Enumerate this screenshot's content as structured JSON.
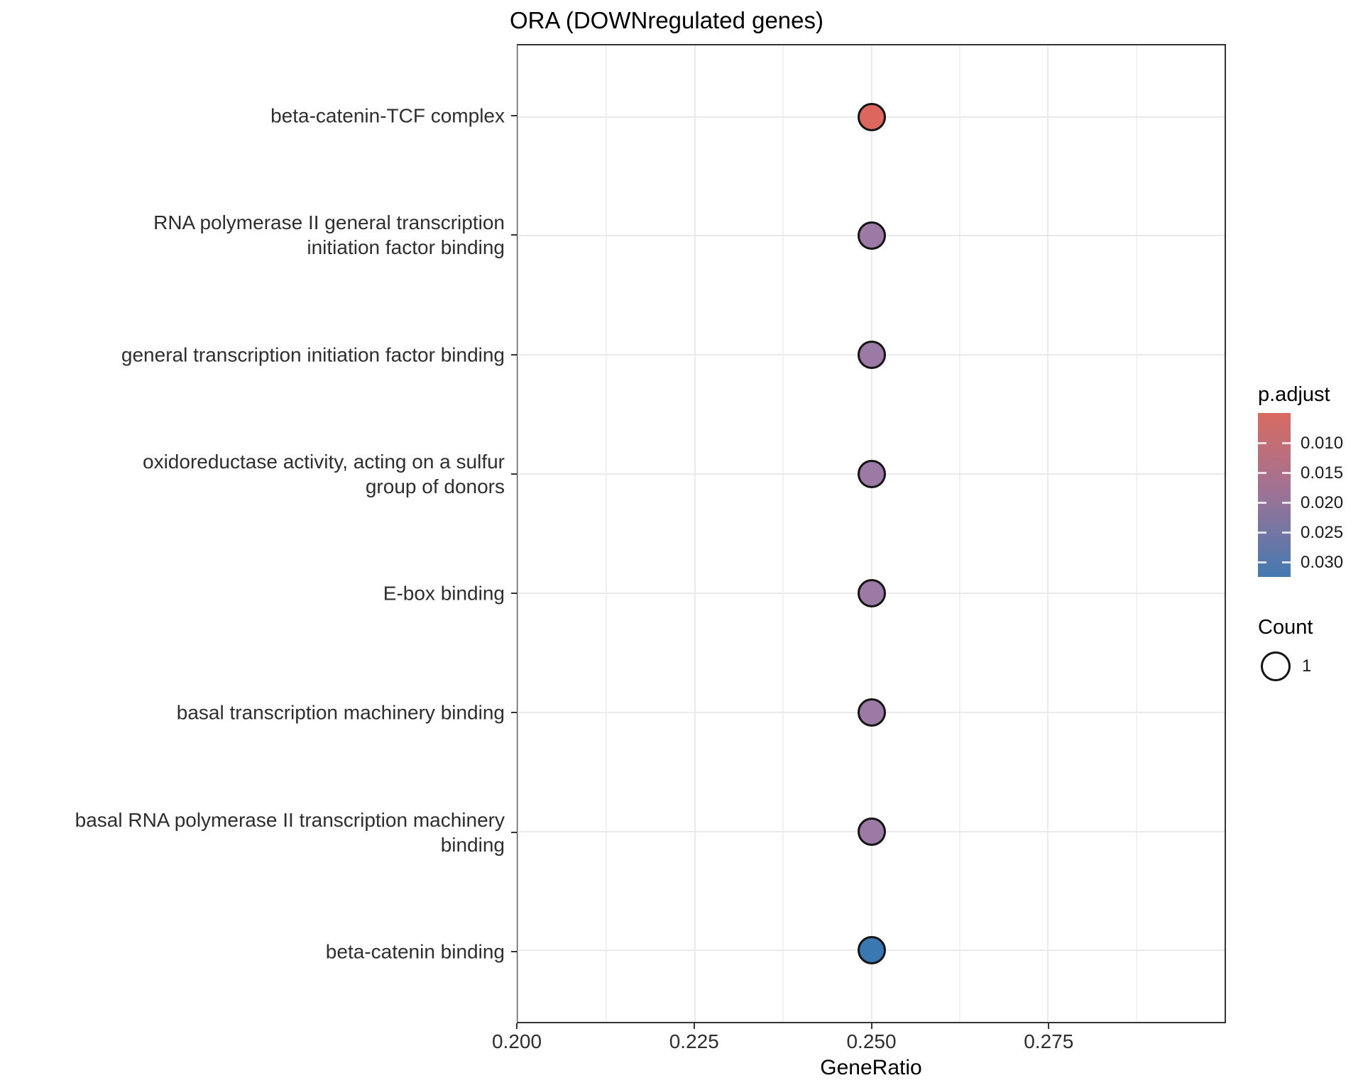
{
  "title": "ORA (DOWNregulated genes)",
  "chart_data": {
    "type": "scatter",
    "subtype": "enrichment-dotplot",
    "title": "ORA (DOWNregulated genes)",
    "xlabel": "GeneRatio",
    "ylabel": "",
    "x_range": [
      0.2,
      0.3
    ],
    "x_tick_values": [
      0.2,
      0.225,
      0.25,
      0.275
    ],
    "x_tick_labels": [
      "0.200",
      "0.225",
      "0.250",
      "0.275"
    ],
    "x_minor_tick_values": [
      0.2125,
      0.2375,
      0.2625,
      0.2875
    ],
    "grid": "white panel, light grey major+minor vertical gridlines, major horizontal gridlines per category row, dark panel border",
    "categories_top_to_bottom": [
      "beta-catenin-TCF complex",
      "RNA polymerase II general transcription\ninitiation factor binding",
      "general transcription initiation factor binding",
      "oxidoreductase activity, acting on a sulfur\ngroup of donors",
      "E-box binding",
      "basal transcription machinery binding",
      "basal RNA polymerase II transcription machinery\nbinding",
      "beta-catenin binding"
    ],
    "points": [
      {
        "category": "beta-catenin-TCF complex",
        "gene_ratio": 0.25,
        "count": 1,
        "color": "#DC675E",
        "p_adjust_est": 0.008
      },
      {
        "category": "RNA polymerase II general transcription\ninitiation factor binding",
        "gene_ratio": 0.25,
        "count": 1,
        "color": "#9B7AA6",
        "p_adjust_est": 0.021
      },
      {
        "category": "general transcription initiation factor binding",
        "gene_ratio": 0.25,
        "count": 1,
        "color": "#9B7AA6",
        "p_adjust_est": 0.021
      },
      {
        "category": "oxidoreductase activity, acting on a sulfur\ngroup of donors",
        "gene_ratio": 0.25,
        "count": 1,
        "color": "#9B7AA6",
        "p_adjust_est": 0.021
      },
      {
        "category": "E-box binding",
        "gene_ratio": 0.25,
        "count": 1,
        "color": "#9B7AA6",
        "p_adjust_est": 0.021
      },
      {
        "category": "basal transcription machinery binding",
        "gene_ratio": 0.25,
        "count": 1,
        "color": "#9B7AA6",
        "p_adjust_est": 0.021
      },
      {
        "category": "basal RNA polymerase II transcription machinery\nbinding",
        "gene_ratio": 0.25,
        "count": 1,
        "color": "#9B7AA6",
        "p_adjust_est": 0.021
      },
      {
        "category": "beta-catenin binding",
        "gene_ratio": 0.25,
        "count": 1,
        "color": "#3978B1",
        "p_adjust_est": 0.031
      }
    ],
    "legend_position": "right"
  },
  "legend": {
    "p_adjust": {
      "title": "p.adjust",
      "tick_labels": [
        "0.010",
        "0.015",
        "0.020",
        "0.025",
        "0.030"
      ],
      "tick_values": [
        0.01,
        0.015,
        0.02,
        0.025,
        0.03
      ],
      "bar_value_range": [
        0.0049,
        0.0324
      ],
      "gradient_stops": [
        "#D96A61",
        "#9C7397",
        "#4379B1"
      ]
    },
    "count": {
      "title": "Count",
      "items": [
        {
          "label": "1",
          "size": 1
        }
      ]
    }
  },
  "colors": {
    "low_p_red": "#DC675E",
    "mid_p_purple": "#9B7AA6",
    "high_p_blue": "#3978B1",
    "grid_major": "#eaeaea",
    "grid_minor": "#f1f1f1",
    "panel_border": "#333333",
    "axis_text": "#2e2e2e",
    "dot_outline": "#141414"
  }
}
